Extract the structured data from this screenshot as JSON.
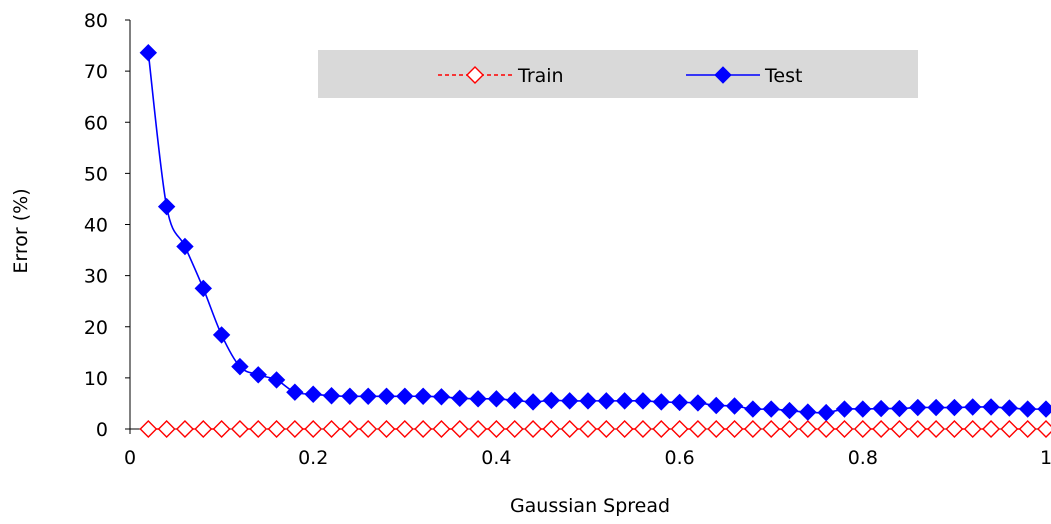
{
  "chart_data": {
    "type": "line",
    "title": "",
    "xlabel": "Gaussian Spread",
    "ylabel": "Error (%)",
    "xlim": [
      0,
      1
    ],
    "ylim": [
      0,
      80
    ],
    "x_ticks": [
      0,
      0.2,
      0.4,
      0.6,
      0.8,
      1
    ],
    "x_tick_labels": [
      "0",
      "0.2",
      "0.4",
      "0.6",
      "0.8",
      "1"
    ],
    "y_ticks": [
      0,
      10,
      20,
      30,
      40,
      50,
      60,
      70,
      80
    ],
    "y_tick_labels": [
      "0",
      "10",
      "20",
      "30",
      "40",
      "50",
      "60",
      "70",
      "80"
    ],
    "grid": false,
    "legend": {
      "placement": "top-center",
      "background": "#d9d9d9"
    },
    "x": [
      0.02,
      0.04,
      0.06,
      0.08,
      0.1,
      0.12,
      0.14,
      0.16,
      0.18,
      0.2,
      0.22,
      0.24,
      0.26,
      0.28,
      0.3,
      0.32,
      0.34,
      0.36,
      0.38,
      0.4,
      0.42,
      0.44,
      0.46,
      0.48,
      0.5,
      0.52,
      0.54,
      0.56,
      0.58,
      0.6,
      0.62,
      0.64,
      0.66,
      0.68,
      0.7,
      0.72,
      0.74,
      0.76,
      0.78,
      0.8,
      0.82,
      0.84,
      0.86,
      0.88,
      0.9,
      0.92,
      0.94,
      0.96,
      0.98,
      1.0
    ],
    "series": [
      {
        "name": "Train",
        "color": "#ff0000",
        "marker": "diamond-open",
        "line": "dashed",
        "values": [
          0,
          0,
          0,
          0,
          0,
          0,
          0,
          0,
          0,
          0,
          0,
          0,
          0,
          0,
          0,
          0,
          0,
          0,
          0,
          0,
          0,
          0,
          0,
          0,
          0,
          0,
          0,
          0,
          0,
          0,
          0,
          0,
          0,
          0,
          0,
          0,
          0,
          0,
          0,
          0,
          0,
          0,
          0,
          0,
          0,
          0,
          0,
          0,
          0,
          0
        ]
      },
      {
        "name": "Test",
        "color": "#0000ff",
        "marker": "diamond-filled",
        "line": "solid",
        "values": [
          73.6,
          43.5,
          35.7,
          27.5,
          18.4,
          12.2,
          10.6,
          9.6,
          7.2,
          6.8,
          6.5,
          6.4,
          6.4,
          6.4,
          6.4,
          6.4,
          6.3,
          6.0,
          5.9,
          5.9,
          5.6,
          5.3,
          5.6,
          5.5,
          5.5,
          5.5,
          5.5,
          5.5,
          5.3,
          5.2,
          5.1,
          4.6,
          4.5,
          3.9,
          3.9,
          3.6,
          3.3,
          3.2,
          3.9,
          3.9,
          4.0,
          4.0,
          4.2,
          4.2,
          4.2,
          4.3,
          4.3,
          4.1,
          3.9,
          3.9
        ]
      }
    ]
  }
}
